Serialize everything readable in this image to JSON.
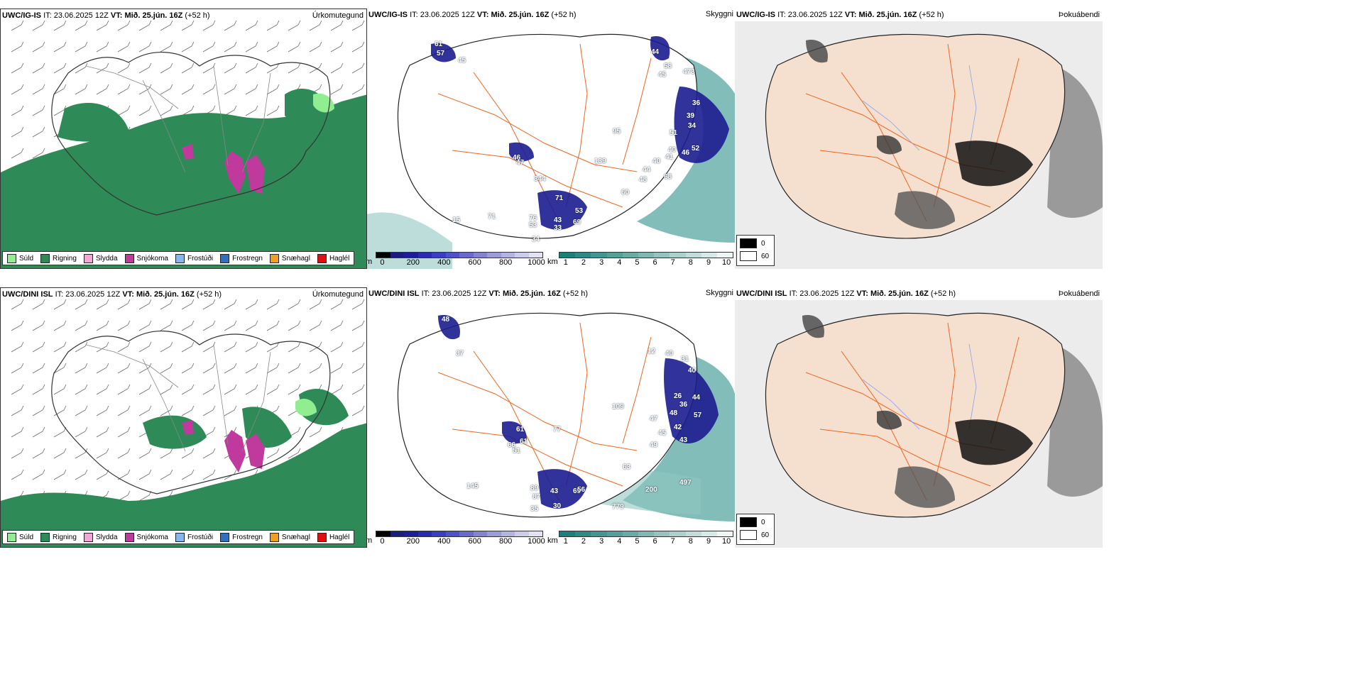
{
  "rows": [
    {
      "model": "UWC/IG-IS",
      "it_label": "IT:",
      "it_value": "23.06.2025 12Z",
      "vt_label": "VT:",
      "vt_value": "Mið. 25.jún. 16Z",
      "lead": "(+52 h)",
      "precip_title": "Úrkomutegund",
      "cloud_title": "Skyggni",
      "fog_title": "Þokuábendi",
      "cloud_labels": [
        "61",
        "57",
        "45",
        "44",
        "58",
        "473",
        "45",
        "36",
        "39",
        "34",
        "51",
        "46",
        "40",
        "52",
        "40",
        "41",
        "44",
        "68",
        "48",
        "60",
        "95",
        "139",
        "46",
        "47",
        "344",
        "71",
        "15",
        "76",
        "53",
        "43",
        "69",
        "53",
        "33",
        "34",
        "71"
      ]
    },
    {
      "model": "UWC/DINI ISL",
      "it_label": "IT:",
      "it_value": "23.06.2025 12Z",
      "vt_label": "VT:",
      "vt_value": "Mið. 25.jún. 16Z",
      "lead": "(+52 h)",
      "precip_title": "Úrkomutegund",
      "cloud_title": "Skyggni",
      "fog_title": "Þokuábendi",
      "cloud_labels": [
        "48",
        "37",
        "12",
        "40",
        "31",
        "40",
        "44",
        "36",
        "48",
        "47",
        "57",
        "42",
        "45",
        "43",
        "49",
        "61",
        "63",
        "26",
        "109",
        "61",
        "51",
        "66",
        "77",
        "145",
        "89",
        "43",
        "69",
        "56",
        "87",
        "30",
        "35",
        "200",
        "497",
        "779"
      ]
    }
  ],
  "precip_legend": [
    {
      "label": "Súld",
      "color": "#90ee90"
    },
    {
      "label": "Rigning",
      "color": "#2e8b57"
    },
    {
      "label": "Slydda",
      "color": "#f4a6d7"
    },
    {
      "label": "Snjókoma",
      "color": "#c0399c"
    },
    {
      "label": "Frostúði",
      "color": "#87b6ee"
    },
    {
      "label": "Frostregn",
      "color": "#3070c0"
    },
    {
      "label": "Snæhagl",
      "color": "#f0a020"
    },
    {
      "label": "Haglél",
      "color": "#e01010"
    }
  ],
  "cloud_base": {
    "unit": "m",
    "ticks": [
      "0",
      "200",
      "400",
      "600",
      "800",
      "1000"
    ],
    "colors": [
      "#000000",
      "#1c1c80",
      "#1c1c9c",
      "#2a2ab4",
      "#3b3bc4",
      "#5050c8",
      "#6a6acc",
      "#8383d2",
      "#9c9cd8",
      "#b4b4e0",
      "#ccccea",
      "#e2e2f4"
    ]
  },
  "visibility": {
    "unit": "km",
    "ticks": [
      "1",
      "2",
      "3",
      "4",
      "5",
      "6",
      "7",
      "8",
      "9",
      "10"
    ],
    "colors": [
      "#1d7f7a",
      "#2e8a85",
      "#429590",
      "#56a09b",
      "#6babA6",
      "#80b7b2",
      "#96c3bf",
      "#acd0cc",
      "#c2ddd9",
      "#d8eae7",
      "#eef5f4"
    ]
  },
  "fog_legend": [
    {
      "label": "0",
      "color": "#000000"
    },
    {
      "label": "60",
      "color": "#ffffff"
    }
  ],
  "colors": {
    "rain": "#2e8b57",
    "drizzle": "#90ee90",
    "snow": "#c0399c",
    "land_fog": "#f5e0d0",
    "roads": "#ee6622",
    "rivers": "#8aa0ee",
    "cloud_dark": "#1c1c90",
    "vis_teal": "#5aa7a3"
  }
}
